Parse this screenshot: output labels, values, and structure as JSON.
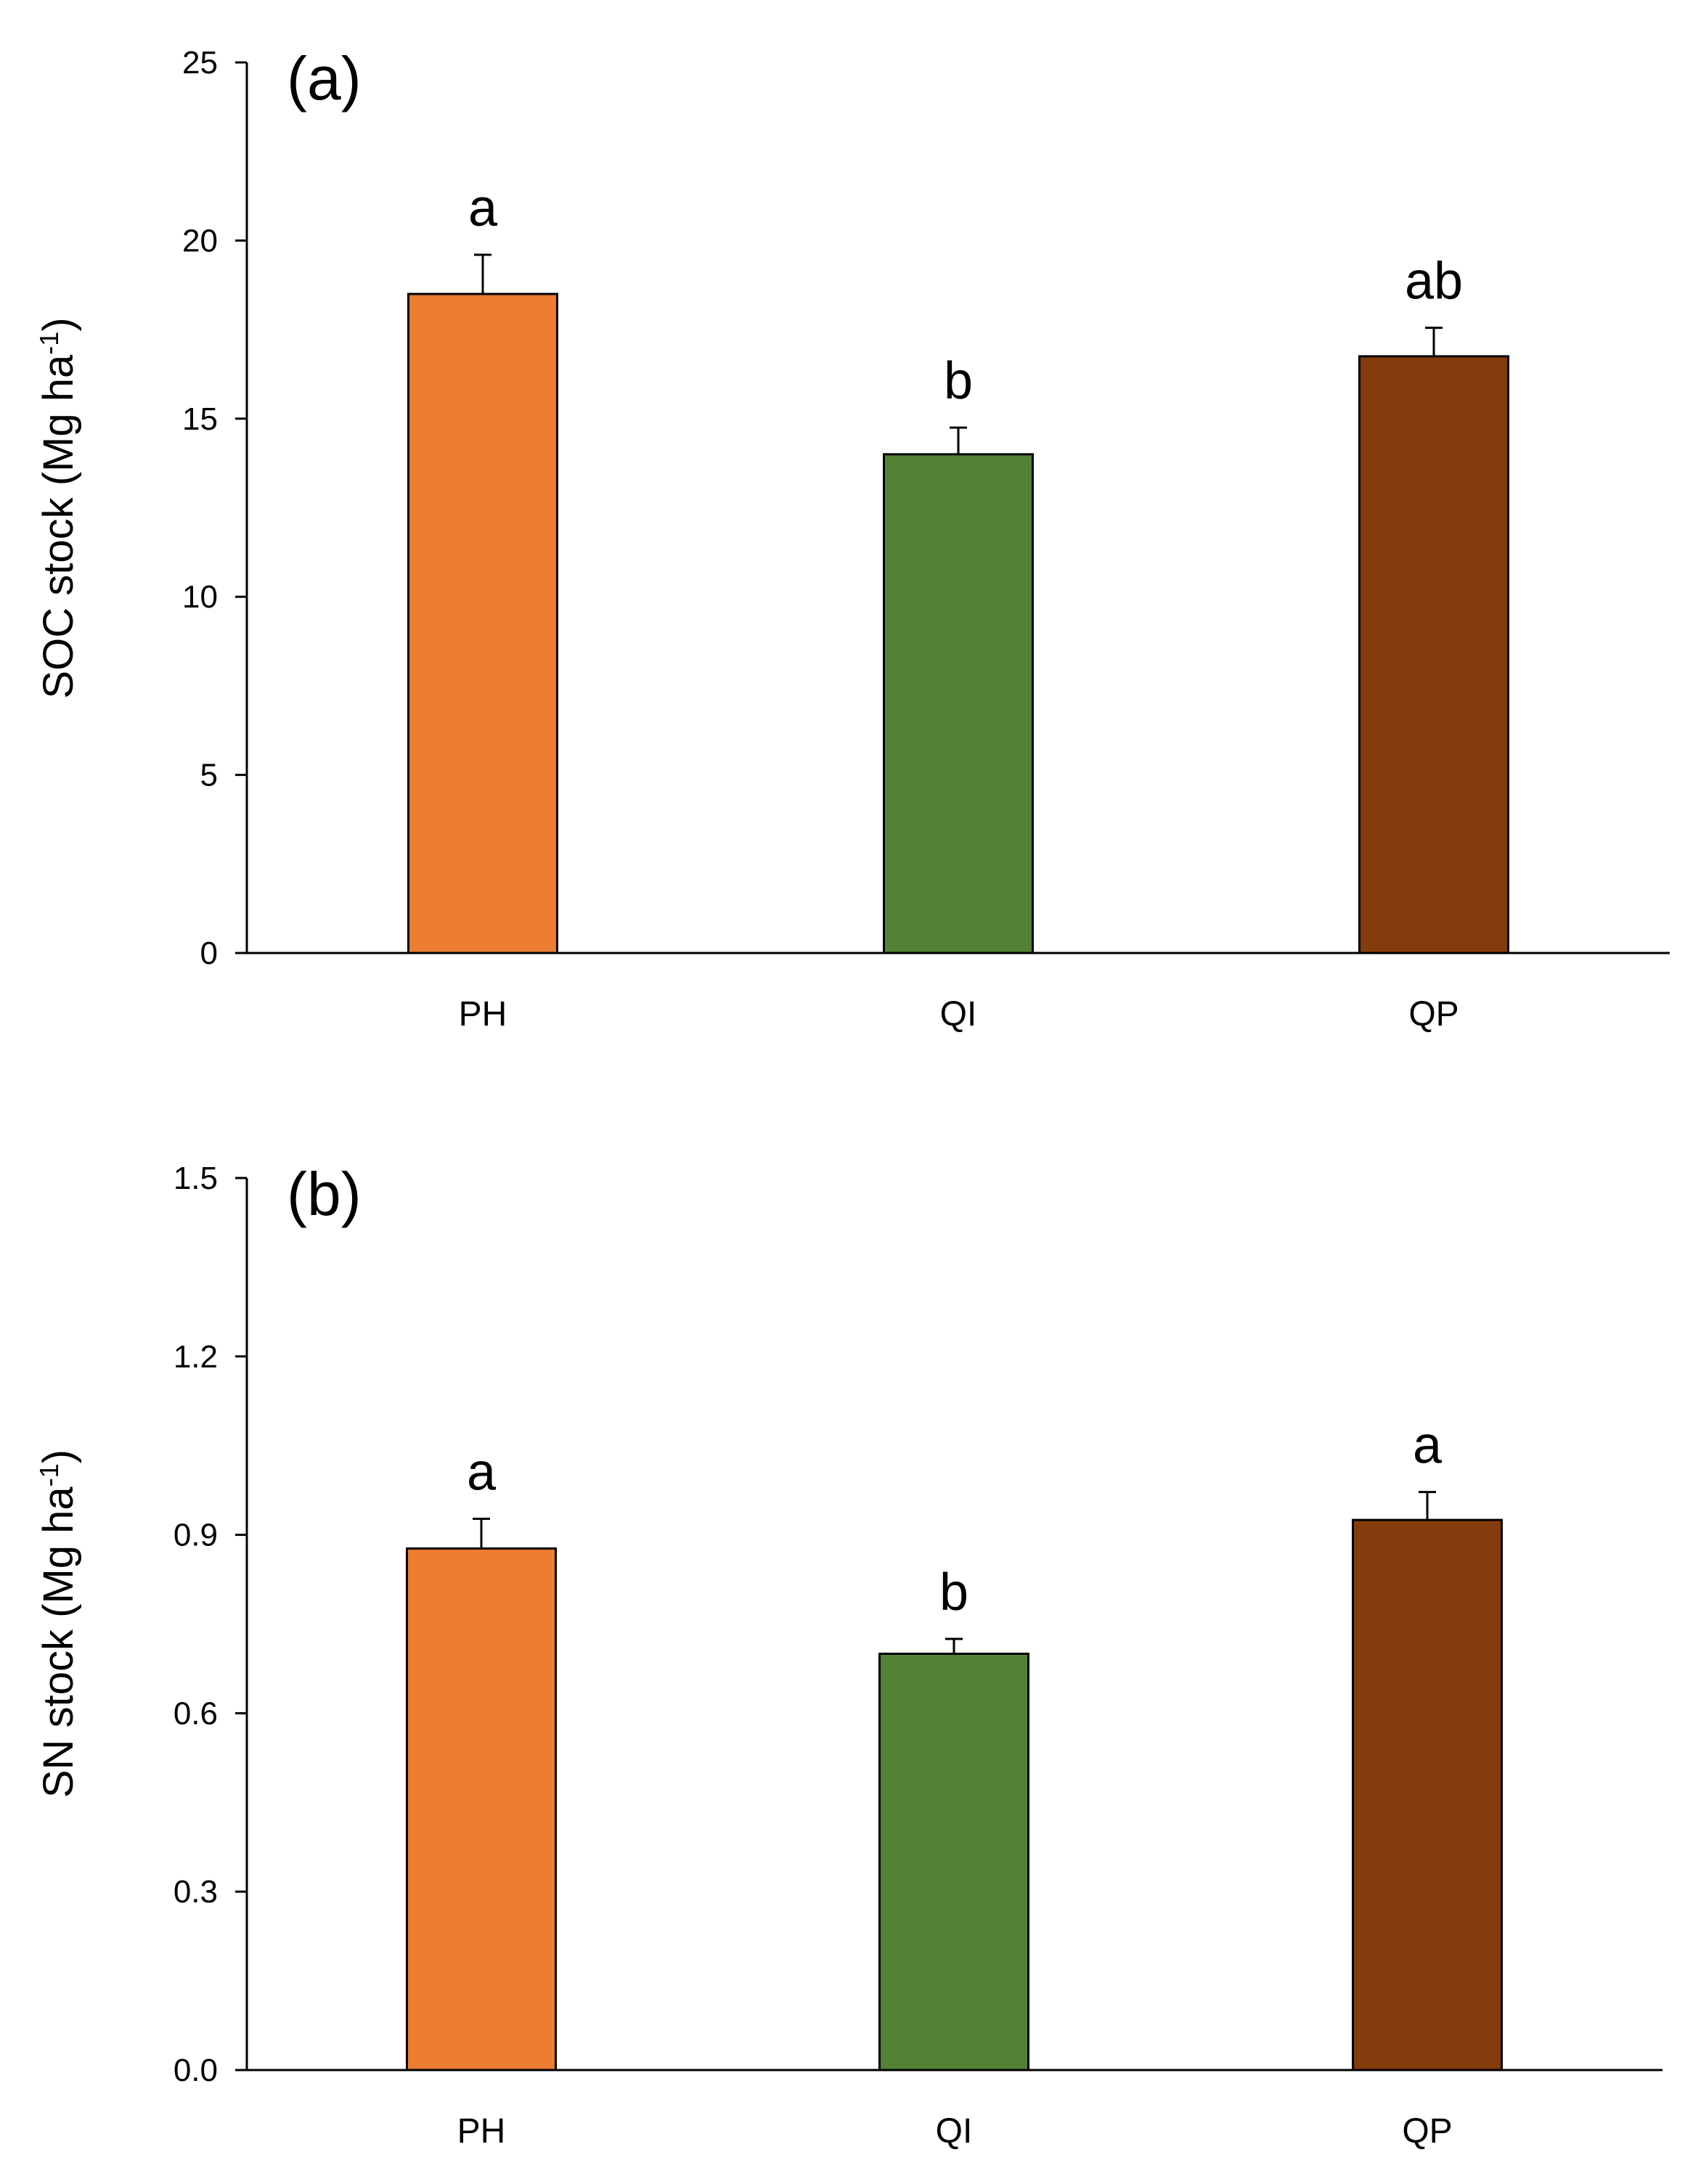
{
  "chart_data": [
    {
      "type": "bar",
      "panel": "(a)",
      "categories": [
        "PH",
        "QI",
        "QP"
      ],
      "values": [
        18.5,
        14.0,
        16.75
      ],
      "errors": [
        1.1,
        0.75,
        0.8
      ],
      "significance": [
        "a",
        "b",
        "ab"
      ],
      "colors": [
        "#ED7D31",
        "#548235",
        "#843C0C"
      ],
      "ylabel_main": "SOC stock (Mg ha",
      "ylabel_sup": "-1",
      "ylabel_end": ")",
      "ylim": [
        0,
        25
      ],
      "yticks": [
        0,
        5,
        10,
        15,
        20,
        25
      ],
      "ytick_labels": [
        "0",
        "5",
        "10",
        "15",
        "20",
        "25"
      ],
      "grid": false
    },
    {
      "type": "bar",
      "panel": "(b)",
      "categories": [
        "PH",
        "QI",
        "QP"
      ],
      "values": [
        0.877,
        0.7,
        0.925
      ],
      "errors": [
        0.05,
        0.025,
        0.047
      ],
      "significance": [
        "a",
        "b",
        "a"
      ],
      "colors": [
        "#ED7D31",
        "#548235",
        "#843C0C"
      ],
      "ylabel_main": "SN stock (Mg ha",
      "ylabel_sup": "-1",
      "ylabel_end": ")",
      "ylim": [
        0,
        1.5
      ],
      "yticks": [
        0,
        0.3,
        0.6,
        0.9,
        1.2,
        1.5
      ],
      "ytick_labels": [
        "0.0",
        "0.3",
        "0.6",
        "0.9",
        "1.2",
        "1.5"
      ],
      "grid": false
    }
  ]
}
